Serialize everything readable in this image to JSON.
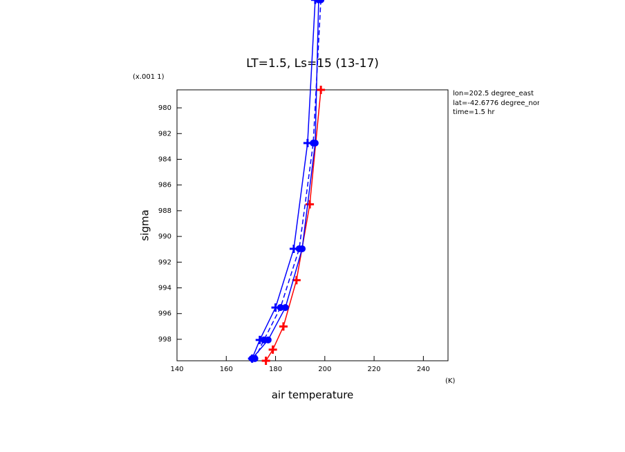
{
  "chart_data": {
    "type": "line",
    "title": "LT=1.5, Ls=15 (13-17)",
    "x_label": "air temperature",
    "x_unit": "(K)",
    "y_label": "sigma",
    "y_unit": "(x.001 1)",
    "annotations": [
      "lon=202.5 degree_east",
      "lat=-42.6776 degree_north",
      "time=1.5 hr"
    ],
    "xlim": [
      140,
      250
    ],
    "ylim": [
      978.6,
      999.67
    ],
    "y_inverted": true,
    "xticks": [
      140,
      160,
      180,
      200,
      220,
      240
    ],
    "yticks": [
      980,
      982,
      984,
      986,
      988,
      990,
      992,
      994,
      996,
      998
    ],
    "series": [
      {
        "color": "#ff0000",
        "marker": "plus",
        "dashed": false,
        "x": [
          198.4,
          193.9,
          188.5,
          183.2,
          178.9,
          176.1
        ],
        "y": [
          978.6,
          987.5,
          993.4,
          997.0,
          998.8,
          999.67
        ]
      },
      {
        "color": "#0000ff",
        "marker": "plus",
        "dashed": false,
        "x": [
          196.1,
          193.0,
          187.4,
          180.0,
          173.6,
          170.5
        ],
        "y": [
          971.6,
          982.74,
          990.96,
          995.53,
          998.05,
          999.5
        ]
      },
      {
        "color": "#0000ff",
        "marker": "circle",
        "dashed": false,
        "x": [
          197.5,
          196.1,
          190.8,
          184.0,
          177.0,
          170.5
        ],
        "y": [
          971.6,
          982.74,
          990.96,
          995.53,
          998.05,
          999.5
        ]
      },
      {
        "color": "#0000ff",
        "marker": "circle",
        "dashed": true,
        "x": [
          198.4,
          195.3,
          189.6,
          182.0,
          175.3,
          171.6
        ],
        "y": [
          971.6,
          982.74,
          990.96,
          995.53,
          998.05,
          999.5
        ]
      }
    ]
  }
}
